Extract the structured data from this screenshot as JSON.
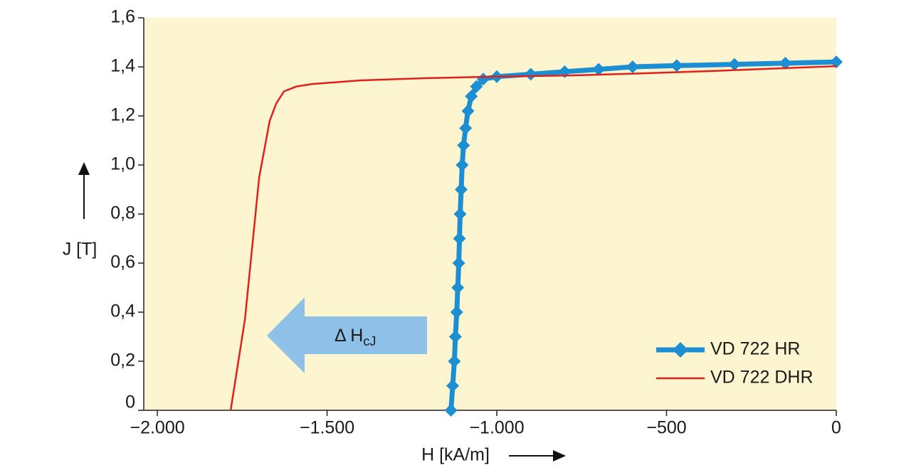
{
  "chart_data": {
    "type": "line",
    "xlabel": "H [kA/m]",
    "ylabel": "J [T]",
    "annotation": {
      "text": "Δ H",
      "subscript": "cJ"
    },
    "xlim": [
      -2040,
      0
    ],
    "ylim": [
      0,
      1.6
    ],
    "xticks": [
      {
        "value": -2000,
        "label": "−2.000"
      },
      {
        "value": -1500,
        "label": "−1.500"
      },
      {
        "value": -1000,
        "label": "−1.000"
      },
      {
        "value": -500,
        "label": "−500"
      },
      0
    ],
    "yticks": [
      0,
      {
        "value": 0.2,
        "label": "0,2"
      },
      {
        "value": 0.4,
        "label": "0,4"
      },
      {
        "value": 0.6,
        "label": "0,6"
      },
      {
        "value": 0.8,
        "label": "0,8"
      },
      {
        "value": 1.0,
        "label": "1,0"
      },
      {
        "value": 1.2,
        "label": "1,2"
      },
      {
        "value": 1.4,
        "label": "1,4"
      },
      {
        "value": 1.6,
        "label": "1,6"
      }
    ],
    "background": "#fcf5cf",
    "legend": "bottom-right",
    "series": [
      {
        "name": "VD 722 HR",
        "color": "#1b8fd2",
        "marker": "diamond",
        "x": [
          -1135,
          -1130,
          -1125,
          -1122,
          -1118,
          -1115,
          -1112,
          -1110,
          -1108,
          -1105,
          -1102,
          -1098,
          -1092,
          -1085,
          -1075,
          -1060,
          -1040,
          -1000,
          -900,
          -800,
          -700,
          -600,
          -470,
          -300,
          -150,
          0
        ],
        "values": [
          0,
          0.1,
          0.2,
          0.3,
          0.4,
          0.5,
          0.6,
          0.7,
          0.8,
          0.9,
          1.0,
          1.08,
          1.15,
          1.22,
          1.28,
          1.32,
          1.35,
          1.36,
          1.37,
          1.38,
          1.39,
          1.4,
          1.405,
          1.41,
          1.415,
          1.42
        ]
      },
      {
        "name": "VD 722 DHR",
        "color": "#e0201c",
        "marker": "none",
        "x": [
          -1784,
          -1742,
          -1700,
          -1669,
          -1650,
          -1627,
          -1590,
          -1543,
          -1400,
          -1207,
          -1000,
          -787,
          -600,
          -367,
          -180,
          0
        ],
        "values": [
          0,
          0.37,
          0.95,
          1.18,
          1.25,
          1.3,
          1.32,
          1.33,
          1.345,
          1.354,
          1.36,
          1.365,
          1.372,
          1.383,
          1.393,
          1.403
        ]
      }
    ]
  }
}
